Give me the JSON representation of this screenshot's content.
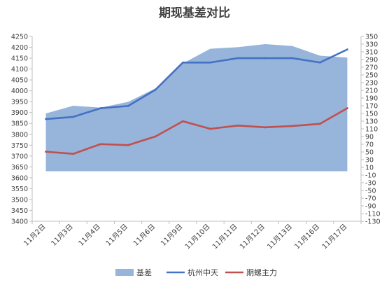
{
  "chart_data": {
    "type": "area",
    "title": "期现基差对比",
    "categories": [
      "11月2日",
      "11月3日",
      "11月4日",
      "11月5日",
      "11月6日",
      "11月9日",
      "11月10日",
      "11月11日",
      "11月12日",
      "11月13日",
      "11月16日",
      "11月17日"
    ],
    "left_axis": {
      "min": 3400,
      "max": 4250,
      "step": 50
    },
    "right_axis": {
      "min": -130,
      "max": 350,
      "step": 20
    },
    "grid": false,
    "legend_position": "bottom",
    "series": [
      {
        "name": "基差",
        "kind": "area",
        "axis": "right",
        "color": "#97b4da",
        "values": [
          150,
          170,
          165,
          180,
          215,
          280,
          318,
          322,
          330,
          325,
          300,
          295
        ]
      },
      {
        "name": "杭州中天",
        "kind": "line",
        "axis": "left",
        "color": "#4472c4",
        "values": [
          3870,
          3880,
          3920,
          3930,
          4005,
          4130,
          4130,
          4150,
          4150,
          4150,
          4130,
          4190
        ]
      },
      {
        "name": "期螺主力",
        "kind": "line",
        "axis": "left",
        "color": "#c0504d",
        "values": [
          3720,
          3710,
          3755,
          3750,
          3790,
          3860,
          3825,
          3840,
          3832,
          3838,
          3848,
          3920
        ]
      }
    ]
  }
}
